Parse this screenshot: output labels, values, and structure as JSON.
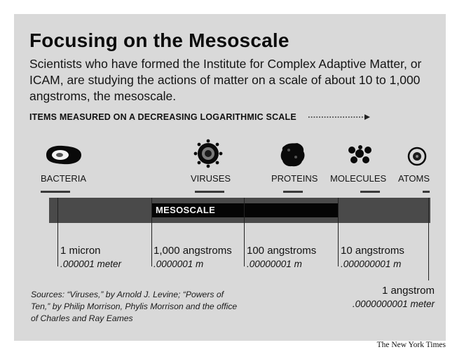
{
  "title": "Focusing on the Mesoscale",
  "intro": "Scientists who have formed the Institute for Complex Adaptive Matter, or ICAM, are studying the actions of matter on a scale of about 10 to 1,000 angstroms, the mesoscale.",
  "scale_label": "ITEMS MEASURED ON A DECREASING LOGARITHMIC SCALE",
  "items": [
    {
      "label": "BACTERIA",
      "icon": "bacteria-icon"
    },
    {
      "label": "VIRUSES",
      "icon": "virus-icon"
    },
    {
      "label": "PROTEINS",
      "icon": "protein-icon"
    },
    {
      "label": "MOLECULES",
      "icon": "molecule-icon"
    },
    {
      "label": "ATOMS",
      "icon": "atom-icon"
    }
  ],
  "mesoscale_label": "MESOSCALE",
  "markers": [
    {
      "main": "1 micron",
      "sub": ".000001 meter"
    },
    {
      "main": "1,000 angstroms",
      "sub": ".0000001 m"
    },
    {
      "main": "100 angstroms",
      "sub": ".00000001 m"
    },
    {
      "main": "10 angstroms",
      "sub": ".000000001 m"
    },
    {
      "main": "1 angstrom",
      "sub": ".0000000001 meter"
    }
  ],
  "sources": "Sources: “Viruses,” by Arnold J. Levine; “Powers of Ten,” by Philip Morrison, Phylis Morrison and the office of Charles and Ray Eames",
  "credit": "The New York Times",
  "colors": {
    "panel": "#d9d9d9",
    "bar": "#4a4a4a",
    "mesoscale": "#050505"
  }
}
